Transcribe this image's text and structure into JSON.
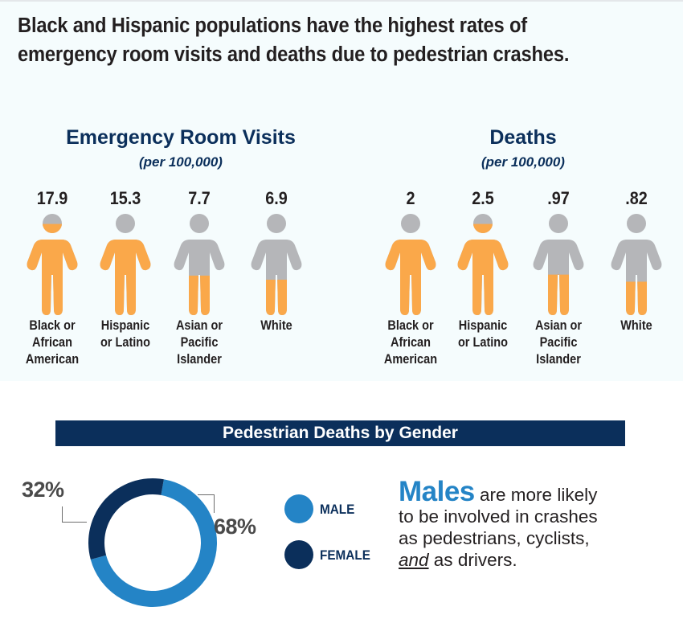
{
  "headline": {
    "line1": "Black and Hispanic populations have the highest rates of",
    "line2": "emergency room visits and deaths due to pedestrian crashes."
  },
  "colors": {
    "filled": "#faa84a",
    "empty": "#b5b6b9",
    "navy": "#0b2f5b",
    "male_blue": "#2484c6"
  },
  "chart_data": [
    {
      "type": "pictogram",
      "title": "Emergency Room Visits",
      "subtitle": "(per 100,000)",
      "categories": [
        "Black or African American",
        "Hispanic or Latino",
        "Asian or Pacific Islander",
        "White"
      ],
      "values": [
        17.9,
        15.3,
        7.7,
        6.9
      ],
      "value_labels": [
        "17.9",
        "15.3",
        "7.7",
        "6.9"
      ],
      "category_lines": [
        [
          "Black or",
          "African",
          "American"
        ],
        [
          "Hispanic",
          "or Latino"
        ],
        [
          "Asian or",
          "Pacific",
          "Islander"
        ],
        [
          "White"
        ]
      ],
      "fill_fraction": [
        0.9,
        0.77,
        0.39,
        0.35
      ]
    },
    {
      "type": "pictogram",
      "title": "Deaths",
      "subtitle": "(per 100,000)",
      "categories": [
        "Black or African American",
        "Hispanic or Latino",
        "Asian or Pacific Islander",
        "White"
      ],
      "values": [
        2,
        2.5,
        0.97,
        0.82
      ],
      "value_labels": [
        "2",
        "2.5",
        ".97",
        ".82"
      ],
      "category_lines": [
        [
          "Black or",
          "African",
          "American"
        ],
        [
          "Hispanic",
          "or Latino"
        ],
        [
          "Asian or",
          "Pacific",
          "Islander"
        ],
        [
          "White"
        ]
      ],
      "fill_fraction": [
        0.8,
        0.9,
        0.4,
        0.33
      ]
    },
    {
      "type": "pie",
      "title": "Pedestrian Deaths by Gender",
      "categories": [
        "MALE",
        "FEMALE"
      ],
      "values": [
        68,
        32
      ],
      "value_labels": [
        "68%",
        "32%"
      ],
      "colors": [
        "#2484c6",
        "#0b2f5b"
      ],
      "donut": true,
      "legend": "right"
    }
  ],
  "gender": {
    "banner": "Pedestrian Deaths by Gender",
    "male_pct": "68%",
    "female_pct": "32%",
    "legend_male": "MALE",
    "legend_female": "FEMALE",
    "note_big": "Males",
    "note_rest1": " are more likely",
    "note_line2": "to be involved in crashes",
    "note_line3": "as pedestrians, cyclists,",
    "note_and": "and",
    "note_line4_rest": " as drivers."
  }
}
